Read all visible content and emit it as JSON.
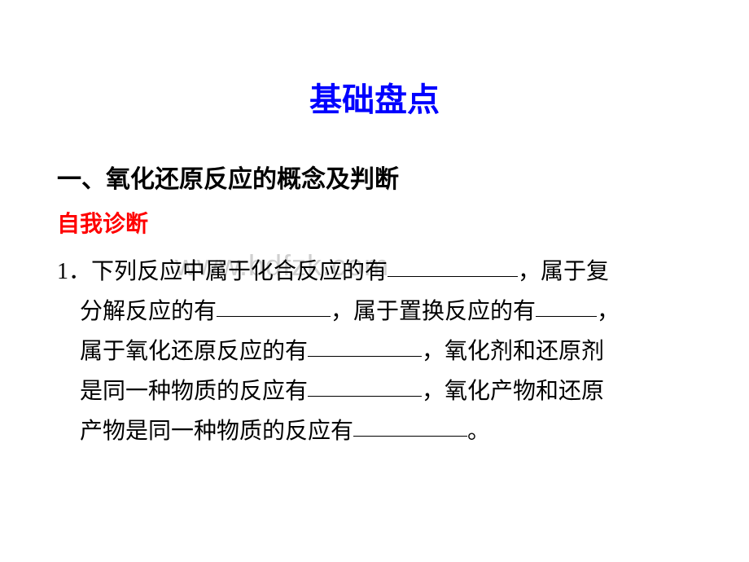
{
  "title": "基础盘点",
  "section_heading": "一、氧化还原反应的概念及判断",
  "subheading": "自我诊断",
  "q1_part1": "1．下列反应中属于化合反应的有",
  "q1_part2": "，属于复",
  "q1_line2a": "分解反应的有",
  "q1_line2b": "，属于置换反应的有",
  "q1_line2c": "，",
  "q1_line3a": "属于氧化还原反应的有",
  "q1_line3b": "，氧化剂和还原剂",
  "q1_line4a": "是同一种物质的反应有",
  "q1_line4b": "，氧化产物和还原",
  "q1_line5a": "产物是同一种物质的反应有",
  "q1_line5b": "。",
  "watermark": "www.bdfzk.com",
  "colors": {
    "title": "#0000ff",
    "subheading": "#ff0000",
    "body": "#000000",
    "background": "#ffffff",
    "watermark": "#d0d0d0"
  },
  "fonts": {
    "title_size": 40,
    "heading_size": 30,
    "body_size": 28
  }
}
